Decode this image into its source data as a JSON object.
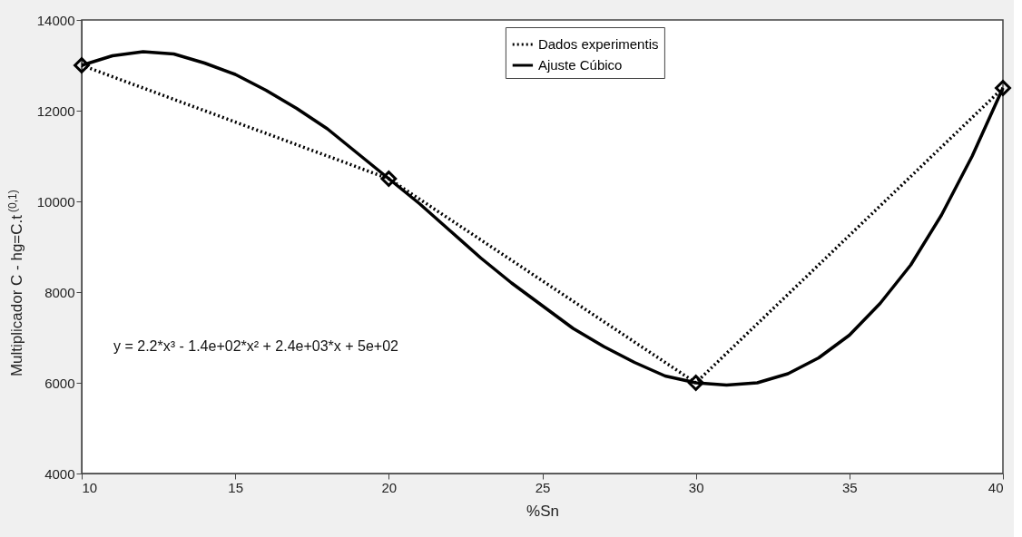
{
  "chart_data": {
    "type": "line",
    "xlabel": "%Sn",
    "ylabel": "Multiplicador C - hg=C.t$^{(0,1)}$",
    "xlim": [
      10,
      40
    ],
    "xticks": [
      10,
      15,
      20,
      25,
      30,
      35,
      40
    ],
    "ylim": [
      4000,
      14000
    ],
    "yticks": [
      4000,
      6000,
      8000,
      10000,
      12000,
      14000
    ],
    "grid": false,
    "legend": "top",
    "annotations": [
      "y = 2.2*x³ - 1.4e+02*x² + 2.4e+03*x + 5e+02"
    ],
    "series": [
      {
        "name": "Dados experimentis",
        "color": "#000000",
        "marker": "diamond",
        "line_style": "dotted",
        "x": [
          10,
          20,
          30,
          40
        ],
        "values": [
          13000,
          10500,
          6000,
          12500
        ]
      },
      {
        "name": "Ajuste Cúbico",
        "color": "#000000",
        "marker": "none",
        "line_style": "solid",
        "x": [
          10,
          11,
          12,
          13,
          14,
          15,
          16,
          17,
          18,
          19,
          20,
          21,
          22,
          23,
          24,
          25,
          26,
          27,
          28,
          29,
          30,
          31,
          32,
          33,
          34,
          35,
          36,
          37,
          38,
          39,
          40
        ],
        "values": [
          13000,
          13210,
          13300,
          13250,
          13050,
          12800,
          12450,
          12050,
          11600,
          11050,
          10500,
          9950,
          9350,
          8750,
          8200,
          7700,
          7200,
          6800,
          6450,
          6150,
          6000,
          5950,
          6000,
          6200,
          6550,
          7050,
          7750,
          8600,
          9700,
          11000,
          12500
        ]
      }
    ]
  }
}
